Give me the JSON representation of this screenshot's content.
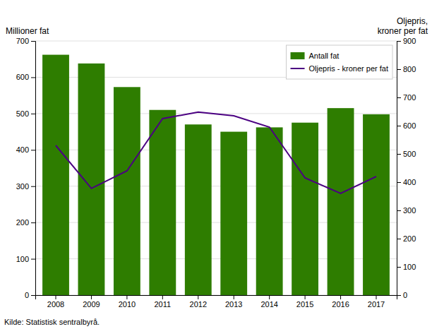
{
  "chart_data": {
    "type": "bar",
    "categories": [
      "2008",
      "2009",
      "2010",
      "2011",
      "2012",
      "2013",
      "2014",
      "2015",
      "2016",
      "2017"
    ],
    "series": [
      {
        "name": "Antall fat",
        "type": "bar",
        "color": "#2e7d00",
        "values": [
          662,
          638,
          573,
          510,
          470,
          450,
          462,
          475,
          515,
          498
        ]
      },
      {
        "name": "Oljepris - kroner per fat",
        "type": "line",
        "axis": "y2",
        "color": "#4b0082",
        "values": [
          530,
          378,
          440,
          625,
          648,
          635,
          595,
          415,
          360,
          420
        ]
      }
    ],
    "y_label": "Millioner fat",
    "y2_label": [
      "Oljepris,",
      "kroner per fat"
    ],
    "annotations": [
      "Kilde: Statistisk sentralbyrå."
    ],
    "ylim": [
      0,
      700
    ],
    "yticks": [
      0,
      100,
      200,
      300,
      400,
      500,
      600,
      700
    ],
    "y2lim": [
      0,
      900
    ],
    "y2ticks": [
      0,
      100,
      200,
      300,
      400,
      500,
      600,
      700,
      800,
      900
    ],
    "grid": true,
    "legend": "upper right"
  }
}
